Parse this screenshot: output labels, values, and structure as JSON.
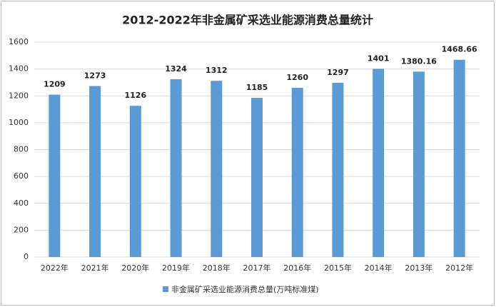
{
  "chart_data": {
    "type": "bar",
    "title": "2012-2022年非金属矿采选业能源消费总量统计",
    "categories": [
      "2022年",
      "2021年",
      "2020年",
      "2019年",
      "2018年",
      "2017年",
      "2016年",
      "2015年",
      "2014年",
      "2013年",
      "2012年"
    ],
    "series": [
      {
        "name": "非金属矿采选业能源消费总量(万吨标准煤)",
        "color": "#5b9bd5",
        "values": [
          1209,
          1273,
          1126,
          1324,
          1312,
          1185,
          1260,
          1297,
          1401,
          1380.16,
          1468.66
        ]
      }
    ],
    "ylim": [
      0,
      1600
    ],
    "yticks": [
      0,
      200,
      400,
      600,
      800,
      1000,
      1200,
      1400,
      1600
    ],
    "grid": true,
    "legend": "bottom"
  }
}
